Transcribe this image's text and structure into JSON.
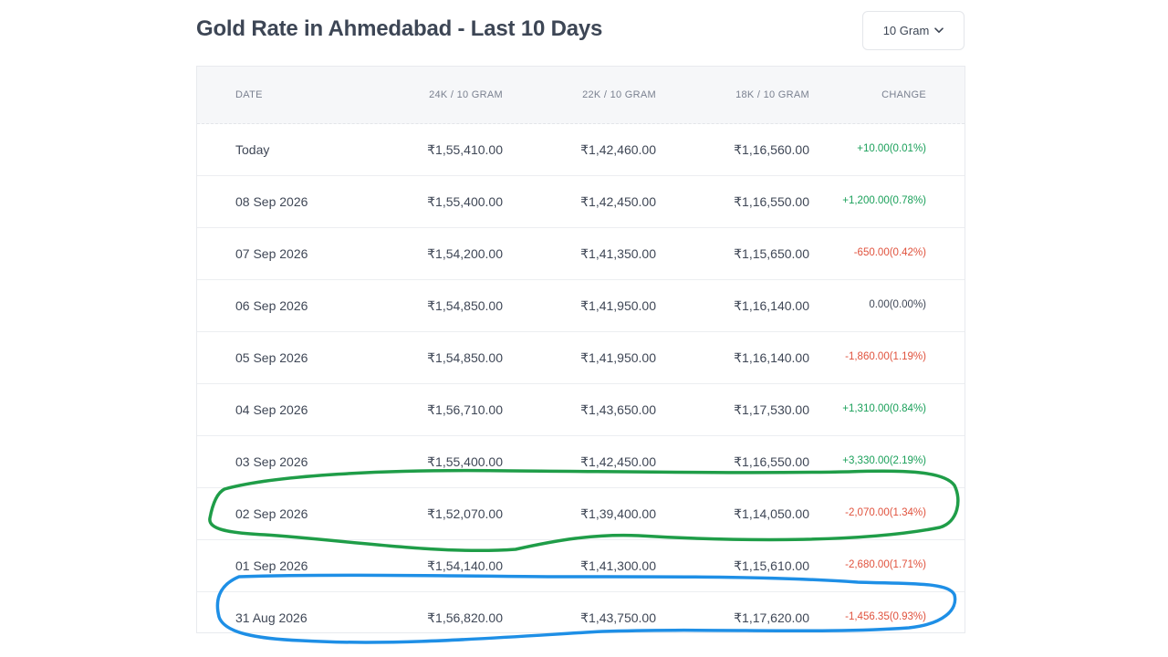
{
  "header": {
    "title": "Gold Rate in Ahmedabad - Last 10 Days",
    "unit_select": {
      "value": "10 Gram"
    }
  },
  "table": {
    "columns": [
      "DATE",
      "24K / 10 GRAM",
      "22K / 10 GRAM",
      "18K / 10 GRAM",
      "CHANGE"
    ],
    "rows": [
      {
        "date": "Today",
        "k24": "₹1,55,410.00",
        "k22": "₹1,42,460.00",
        "k18": "₹1,16,560.00",
        "change": "+10.00(0.01%)",
        "trend": "up"
      },
      {
        "date": "08 Sep 2026",
        "k24": "₹1,55,400.00",
        "k22": "₹1,42,450.00",
        "k18": "₹1,16,550.00",
        "change": "+1,200.00(0.78%)",
        "trend": "up"
      },
      {
        "date": "07 Sep 2026",
        "k24": "₹1,54,200.00",
        "k22": "₹1,41,350.00",
        "k18": "₹1,15,650.00",
        "change": "-650.00(0.42%)",
        "trend": "down"
      },
      {
        "date": "06 Sep 2026",
        "k24": "₹1,54,850.00",
        "k22": "₹1,41,950.00",
        "k18": "₹1,16,140.00",
        "change": "0.00(0.00%)",
        "trend": "flat"
      },
      {
        "date": "05 Sep 2026",
        "k24": "₹1,54,850.00",
        "k22": "₹1,41,950.00",
        "k18": "₹1,16,140.00",
        "change": "-1,860.00(1.19%)",
        "trend": "down"
      },
      {
        "date": "04 Sep 2026",
        "k24": "₹1,56,710.00",
        "k22": "₹1,43,650.00",
        "k18": "₹1,17,530.00",
        "change": "+1,310.00(0.84%)",
        "trend": "up"
      },
      {
        "date": "03 Sep 2026",
        "k24": "₹1,55,400.00",
        "k22": "₹1,42,450.00",
        "k18": "₹1,16,550.00",
        "change": "+3,330.00(2.19%)",
        "trend": "up"
      },
      {
        "date": "02 Sep 2026",
        "k24": "₹1,52,070.00",
        "k22": "₹1,39,400.00",
        "k18": "₹1,14,050.00",
        "change": "-2,070.00(1.34%)",
        "trend": "down"
      },
      {
        "date": "01 Sep 2026",
        "k24": "₹1,54,140.00",
        "k22": "₹1,41,300.00",
        "k18": "₹1,15,610.00",
        "change": "-2,680.00(1.71%)",
        "trend": "down"
      },
      {
        "date": "31 Aug 2026",
        "k24": "₹1,56,820.00",
        "k22": "₹1,43,750.00",
        "k18": "₹1,17,620.00",
        "change": "-1,456.35(0.93%)",
        "trend": "down"
      }
    ]
  },
  "colors": {
    "up": "#1aa05a",
    "down": "#e0523d",
    "annotation_green": "#1f9d48",
    "annotation_blue": "#1e8fe6"
  },
  "icons": {
    "dropdown": "chevron-down-icon"
  }
}
